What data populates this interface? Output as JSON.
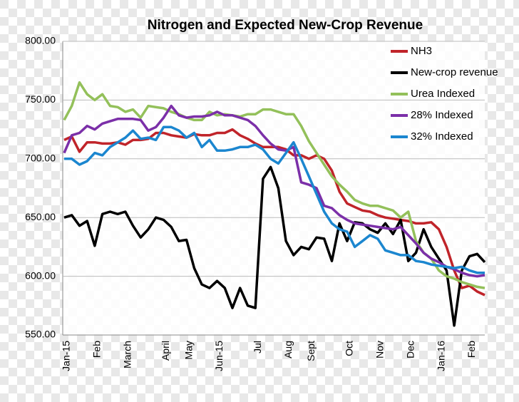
{
  "chart_data": {
    "type": "line",
    "title": "Nitrogen and Expected New-Crop Revenue",
    "categories": [
      "Jan-15",
      null,
      null,
      null,
      "Feb",
      null,
      null,
      null,
      "March",
      null,
      null,
      null,
      null,
      "April",
      null,
      null,
      "May",
      null,
      null,
      null,
      "Jun-15",
      null,
      null,
      null,
      null,
      "Jul",
      null,
      null,
      null,
      "Aug",
      null,
      null,
      "Sept",
      null,
      null,
      null,
      null,
      "Oct",
      null,
      null,
      null,
      "Nov",
      null,
      null,
      null,
      "Dec",
      null,
      null,
      null,
      "Jan-16",
      null,
      null,
      null,
      "Feb",
      null,
      null
    ],
    "series": [
      {
        "name": "NH3",
        "color": "#c0242a",
        "values": [
          716,
          719,
          706,
          714,
          714,
          713,
          713,
          714,
          712,
          716,
          716,
          717,
          722,
          722,
          720,
          719,
          718,
          721,
          720,
          720,
          722,
          722,
          725,
          720,
          717,
          713,
          710,
          710,
          710,
          708,
          703,
          703,
          700,
          703,
          700,
          690,
          672,
          662,
          659,
          656,
          655,
          652,
          650,
          649,
          648,
          647,
          645,
          645,
          646,
          640,
          625,
          605,
          590,
          592,
          587,
          584
        ]
      },
      {
        "name": "New-crop revenue",
        "color": "#000000",
        "values": [
          650,
          652,
          643,
          647,
          626,
          653,
          655,
          653,
          655,
          643,
          633,
          640,
          650,
          648,
          642,
          630,
          631,
          607,
          593,
          590,
          596,
          590,
          573,
          590,
          575,
          573,
          683,
          693,
          675,
          630,
          618,
          625,
          623,
          633,
          632,
          613,
          645,
          630,
          646,
          645,
          640,
          637,
          645,
          636,
          648,
          613,
          620,
          640,
          625,
          615,
          605,
          558,
          605,
          617,
          619,
          612
        ]
      },
      {
        "name": "Urea Indexed",
        "color": "#93c05a",
        "values": [
          733,
          745,
          765,
          755,
          750,
          755,
          745,
          744,
          740,
          742,
          735,
          745,
          744,
          743,
          740,
          738,
          735,
          733,
          733,
          740,
          737,
          738,
          737,
          736,
          738,
          738,
          742,
          742,
          740,
          738,
          738,
          728,
          715,
          705,
          695,
          685,
          678,
          672,
          665,
          662,
          660,
          660,
          658,
          656,
          650,
          655,
          630,
          620,
          615,
          605,
          600,
          598,
          595,
          593,
          591,
          590
        ]
      },
      {
        "name": "28% Indexed",
        "color": "#7b2fa8",
        "values": [
          705,
          720,
          722,
          728,
          725,
          730,
          732,
          734,
          734,
          734,
          733,
          724,
          727,
          735,
          745,
          737,
          735,
          736,
          736,
          737,
          740,
          737,
          737,
          735,
          733,
          728,
          720,
          713,
          708,
          707,
          710,
          680,
          678,
          675,
          660,
          658,
          652,
          648,
          645,
          644,
          643,
          642,
          641,
          640,
          642,
          635,
          628,
          620,
          615,
          612,
          608,
          606,
          603,
          601,
          600,
          601
        ]
      },
      {
        "name": "32% Indexed",
        "color": "#1b86cf",
        "values": [
          700,
          700,
          695,
          698,
          705,
          703,
          710,
          714,
          718,
          724,
          717,
          718,
          716,
          727,
          727,
          724,
          718,
          722,
          710,
          716,
          707,
          707,
          708,
          710,
          710,
          712,
          708,
          700,
          696,
          705,
          714,
          700,
          685,
          670,
          655,
          645,
          640,
          638,
          625,
          630,
          635,
          632,
          622,
          620,
          618,
          618,
          613,
          612,
          610,
          609,
          608,
          607,
          608,
          605,
          603,
          603
        ]
      }
    ],
    "ylim": [
      550,
      800
    ],
    "yticks": [
      {
        "value": 550,
        "label": "550.00"
      },
      {
        "value": 600,
        "label": "600.00"
      },
      {
        "value": 650,
        "label": "650.00"
      },
      {
        "value": 700,
        "label": "700.00"
      },
      {
        "value": 750,
        "label": "750.00"
      },
      {
        "value": 800,
        "label": "800.00"
      }
    ],
    "grid": true
  }
}
